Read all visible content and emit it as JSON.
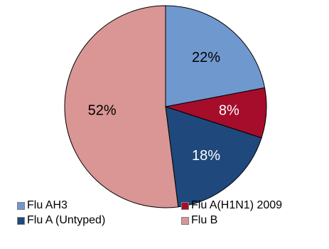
{
  "chart_data": {
    "type": "pie",
    "slices": [
      {
        "label": "Flu AH3",
        "value": 22,
        "display": "22%",
        "color": "#6f98cf",
        "text_color": "#000000"
      },
      {
        "label": "Flu A(H1N1) 2009",
        "value": 8,
        "display": "8%",
        "color": "#a50d2b",
        "text_color": "#ffffff"
      },
      {
        "label": "Flu A (Untyped)",
        "value": 18,
        "display": "18%",
        "color": "#1f497d",
        "text_color": "#ffffff"
      },
      {
        "label": "Flu B",
        "value": 52,
        "display": "52%",
        "color": "#d99694",
        "text_color": "#000000"
      }
    ],
    "start_angle": "12 o'clock",
    "direction": "clockwise",
    "legend_position": "bottom",
    "outline_color": "#000000"
  },
  "legend": {
    "items": [
      {
        "label": "Flu AH3",
        "color": "#6f98cf"
      },
      {
        "label": "Flu A(H1N1) 2009",
        "color": "#a50d2b"
      },
      {
        "label": "Flu A (Untyped)",
        "color": "#1f497d"
      },
      {
        "label": "Flu B",
        "color": "#d99694"
      }
    ]
  }
}
